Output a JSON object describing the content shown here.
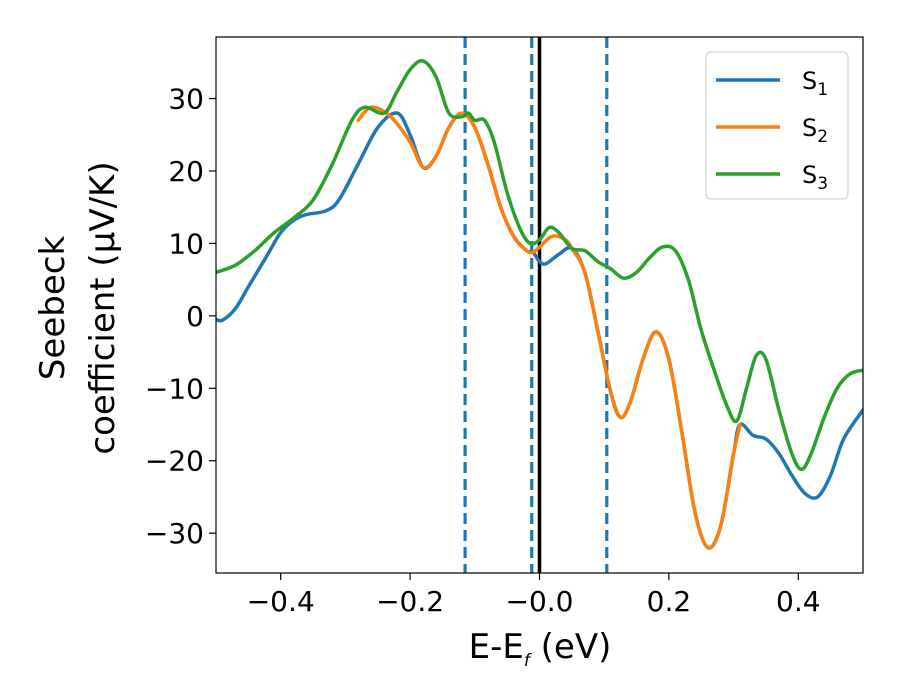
{
  "chart_data": {
    "type": "line",
    "xlabel": {
      "main": "E-E",
      "subscript": "f",
      "suffix": " (eV)"
    },
    "ylabel": {
      "line1": "Seebeck",
      "line2": "coefficient  (μV/K)"
    },
    "xlim": [
      -0.5,
      0.5
    ],
    "ylim": [
      -35.5,
      38.5
    ],
    "xticks": [
      -0.4,
      -0.2,
      0.0,
      0.2,
      0.4
    ],
    "xtick_labels": [
      "−0.4",
      "−0.2",
      "−0.0",
      "0.2",
      "0.4"
    ],
    "yticks": [
      -30,
      -20,
      -10,
      0,
      10,
      20,
      30
    ],
    "ytick_labels": [
      "−30",
      "−20",
      "−10",
      "0",
      "10",
      "20",
      "30"
    ],
    "grid": false,
    "legend_position": "top-right",
    "vlines": [
      {
        "x": -0.115,
        "style": "dashed",
        "color": "#1f77b4"
      },
      {
        "x": -0.012,
        "style": "dashed",
        "color": "#1f77b4"
      },
      {
        "x": 0.0,
        "style": "solid",
        "color": "#000000"
      },
      {
        "x": 0.104,
        "style": "dashed",
        "color": "#1f77b4"
      }
    ],
    "series": [
      {
        "name": "S",
        "subscript": "1",
        "color": "#1f77b4",
        "points": [
          [
            -0.5,
            -0.5
          ],
          [
            -0.49,
            -0.6
          ],
          [
            -0.47,
            1
          ],
          [
            -0.45,
            4
          ],
          [
            -0.42,
            8.5
          ],
          [
            -0.4,
            11.5
          ],
          [
            -0.38,
            13.2
          ],
          [
            -0.36,
            14
          ],
          [
            -0.33,
            14.5
          ],
          [
            -0.31,
            16
          ],
          [
            -0.28,
            21
          ],
          [
            -0.25,
            26
          ],
          [
            -0.22,
            28
          ],
          [
            -0.2,
            25
          ],
          [
            -0.18,
            20.5
          ],
          [
            -0.16,
            22
          ],
          [
            -0.14,
            26
          ],
          [
            -0.12,
            28
          ],
          [
            -0.1,
            26
          ],
          [
            -0.08,
            21
          ],
          [
            -0.06,
            15
          ],
          [
            -0.04,
            11
          ],
          [
            -0.02,
            9
          ],
          [
            -0.01,
            8.8
          ],
          [
            0.0,
            7.5
          ],
          [
            0.01,
            7.2
          ],
          [
            0.03,
            8.5
          ],
          [
            0.05,
            9.3
          ],
          [
            0.07,
            6
          ],
          [
            0.09,
            -2
          ],
          [
            0.11,
            -10.5
          ],
          [
            0.125,
            -14
          ],
          [
            0.14,
            -12
          ],
          [
            0.16,
            -6
          ],
          [
            0.18,
            -2.2
          ],
          [
            0.2,
            -6
          ],
          [
            0.22,
            -16
          ],
          [
            0.24,
            -27
          ],
          [
            0.26,
            -32
          ],
          [
            0.28,
            -29
          ],
          [
            0.3,
            -19
          ],
          [
            0.31,
            -15
          ],
          [
            0.33,
            -16.5
          ],
          [
            0.35,
            -17
          ],
          [
            0.37,
            -19
          ],
          [
            0.39,
            -22
          ],
          [
            0.41,
            -24.5
          ],
          [
            0.43,
            -25
          ],
          [
            0.45,
            -22
          ],
          [
            0.47,
            -17
          ],
          [
            0.5,
            -13
          ]
        ]
      },
      {
        "name": "S",
        "subscript": "2",
        "color": "#ff7f0e",
        "points": [
          [
            -0.28,
            27
          ],
          [
            -0.26,
            28.8
          ],
          [
            -0.23,
            27.5
          ],
          [
            -0.2,
            24
          ],
          [
            -0.18,
            20.5
          ],
          [
            -0.16,
            22
          ],
          [
            -0.14,
            26
          ],
          [
            -0.12,
            28
          ],
          [
            -0.1,
            26
          ],
          [
            -0.08,
            21
          ],
          [
            -0.06,
            15
          ],
          [
            -0.04,
            11
          ],
          [
            -0.02,
            9
          ],
          [
            -0.01,
            8.8
          ],
          [
            0.0,
            9.5
          ],
          [
            0.02,
            11
          ],
          [
            0.04,
            10.5
          ],
          [
            0.05,
            9.3
          ],
          [
            0.07,
            6
          ],
          [
            0.09,
            -2
          ],
          [
            0.11,
            -10.5
          ],
          [
            0.125,
            -14
          ],
          [
            0.14,
            -12
          ],
          [
            0.16,
            -6
          ],
          [
            0.18,
            -2.2
          ],
          [
            0.2,
            -6
          ],
          [
            0.22,
            -16
          ],
          [
            0.24,
            -27
          ],
          [
            0.26,
            -32
          ],
          [
            0.28,
            -29
          ],
          [
            0.3,
            -19
          ],
          [
            0.31,
            -15
          ]
        ]
      },
      {
        "name": "S",
        "subscript": "3",
        "color": "#2ca02c",
        "points": [
          [
            -0.5,
            6
          ],
          [
            -0.47,
            7
          ],
          [
            -0.44,
            9
          ],
          [
            -0.41,
            11.5
          ],
          [
            -0.38,
            13.5
          ],
          [
            -0.35,
            16
          ],
          [
            -0.32,
            21
          ],
          [
            -0.29,
            27
          ],
          [
            -0.27,
            28.8
          ],
          [
            -0.24,
            28
          ],
          [
            -0.22,
            31
          ],
          [
            -0.2,
            34
          ],
          [
            -0.18,
            35.2
          ],
          [
            -0.16,
            33
          ],
          [
            -0.14,
            28
          ],
          [
            -0.12,
            27.5
          ],
          [
            -0.11,
            28
          ],
          [
            -0.1,
            27
          ],
          [
            -0.085,
            27
          ],
          [
            -0.07,
            24
          ],
          [
            -0.05,
            17
          ],
          [
            -0.03,
            12
          ],
          [
            -0.015,
            10
          ],
          [
            0.0,
            10.5
          ],
          [
            0.015,
            12.2
          ],
          [
            0.03,
            11.5
          ],
          [
            0.05,
            9.3
          ],
          [
            0.07,
            9
          ],
          [
            0.09,
            7.5
          ],
          [
            0.11,
            6.5
          ],
          [
            0.13,
            5.2
          ],
          [
            0.15,
            6
          ],
          [
            0.17,
            8
          ],
          [
            0.19,
            9.5
          ],
          [
            0.21,
            9
          ],
          [
            0.23,
            5
          ],
          [
            0.25,
            -2
          ],
          [
            0.27,
            -7.5
          ],
          [
            0.29,
            -12.5
          ],
          [
            0.305,
            -14.5
          ],
          [
            0.32,
            -10
          ],
          [
            0.335,
            -5.5
          ],
          [
            0.35,
            -6
          ],
          [
            0.37,
            -13
          ],
          [
            0.39,
            -19
          ],
          [
            0.405,
            -21.2
          ],
          [
            0.42,
            -19
          ],
          [
            0.44,
            -14
          ],
          [
            0.46,
            -10
          ],
          [
            0.48,
            -8
          ],
          [
            0.5,
            -7.5
          ]
        ]
      }
    ]
  }
}
